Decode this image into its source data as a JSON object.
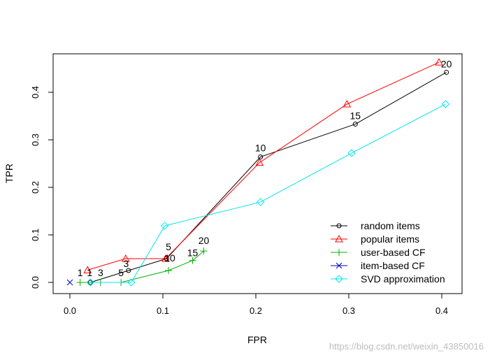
{
  "chart_data": {
    "type": "line",
    "xlabel": "FPR",
    "ylabel": "TPR",
    "xlim": [
      0.0,
      0.42
    ],
    "ylim": [
      0.0,
      0.47
    ],
    "x_ticks": [
      0.0,
      0.1,
      0.2,
      0.3,
      0.4
    ],
    "x_tick_labels": [
      "0.0",
      "0.1",
      "0.2",
      "0.3",
      "0.4"
    ],
    "y_ticks": [
      0.0,
      0.1,
      0.2,
      0.3,
      0.4
    ],
    "y_tick_labels": [
      "0.0",
      "0.1",
      "0.2",
      "0.3",
      "0.4"
    ],
    "grid": false,
    "legend_position": "bottom-right",
    "series": [
      {
        "name": "random items",
        "color": "#000000",
        "marker": "circle",
        "points": [
          {
            "x": 0.022,
            "y": 0.0
          },
          {
            "x": 0.063,
            "y": 0.025
          },
          {
            "x": 0.104,
            "y": 0.05
          },
          {
            "x": 0.205,
            "y": 0.264
          },
          {
            "x": 0.307,
            "y": 0.333
          },
          {
            "x": 0.405,
            "y": 0.442
          }
        ]
      },
      {
        "name": "popular items",
        "color": "#ff0000",
        "marker": "triangle",
        "points": [
          {
            "x": 0.019,
            "y": 0.026
          },
          {
            "x": 0.06,
            "y": 0.05
          },
          {
            "x": 0.103,
            "y": 0.05
          },
          {
            "x": 0.204,
            "y": 0.252
          },
          {
            "x": 0.298,
            "y": 0.375
          },
          {
            "x": 0.397,
            "y": 0.463
          }
        ]
      },
      {
        "name": "user-based CF",
        "color": "#00b000",
        "marker": "plus",
        "points": [
          {
            "x": 0.011,
            "y": 0.0
          },
          {
            "x": 0.033,
            "y": 0.0
          },
          {
            "x": 0.055,
            "y": 0.0
          },
          {
            "x": 0.106,
            "y": 0.025
          },
          {
            "x": 0.132,
            "y": 0.046
          },
          {
            "x": 0.144,
            "y": 0.066
          }
        ]
      },
      {
        "name": "item-based CF",
        "color": "#0000cc",
        "marker": "cross",
        "points": [
          {
            "x": 0.0,
            "y": 0.0
          }
        ]
      },
      {
        "name": "SVD approximation",
        "color": "#00e5ee",
        "marker": "diamond",
        "points": [
          {
            "x": 0.022,
            "y": 0.0
          },
          {
            "x": 0.066,
            "y": 0.0
          },
          {
            "x": 0.102,
            "y": 0.119
          },
          {
            "x": 0.205,
            "y": 0.169
          },
          {
            "x": 0.303,
            "y": 0.272
          },
          {
            "x": 0.404,
            "y": 0.375
          }
        ]
      }
    ],
    "annotations": [
      {
        "text": "1",
        "x": 0.011,
        "y": 0.0
      },
      {
        "text": "1",
        "x": 0.022,
        "y": 0.0
      },
      {
        "text": "3",
        "x": 0.033,
        "y": 0.0
      },
      {
        "text": "5",
        "x": 0.055,
        "y": 0.0
      },
      {
        "text": "3",
        "x": 0.062,
        "y": 0.025
      },
      {
        "text": "5",
        "x": 0.103,
        "y": 0.05
      },
      {
        "text": "10",
        "x": 0.103,
        "y": 0.05
      },
      {
        "text": "15",
        "x": 0.132,
        "y": 0.046
      },
      {
        "text": "20",
        "x": 0.144,
        "y": 0.066
      },
      {
        "text": "10",
        "x": 0.205,
        "y": 0.264
      },
      {
        "text": "15",
        "x": 0.307,
        "y": 0.333
      },
      {
        "text": "20",
        "x": 0.405,
        "y": 0.442
      }
    ]
  },
  "watermark": "https://blog.csdn.net/weixin_43850016"
}
